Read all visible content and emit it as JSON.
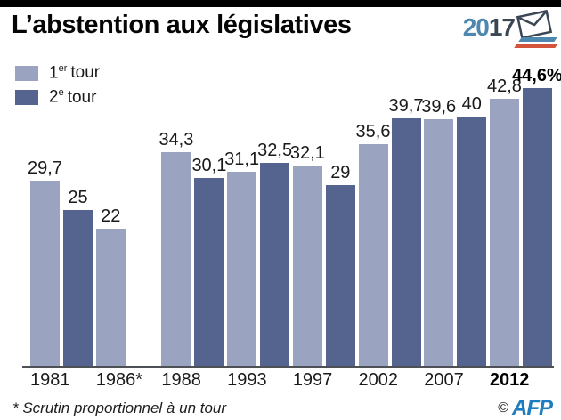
{
  "header": {
    "title": "L’abstention aux législatives",
    "logo_2017": {
      "prefix": "20",
      "suffix": "17",
      "icon": "envelope-icon",
      "stripe_colors": [
        "#4e87b0",
        "#d3543c"
      ]
    }
  },
  "legend": {
    "items": [
      {
        "num": "1",
        "sup": "er",
        "word": "tour",
        "color": "#9aa4c1"
      },
      {
        "num": "2",
        "sup": "e",
        "word": "tour",
        "color": "#54648e"
      }
    ]
  },
  "chart_data": {
    "type": "bar",
    "title": "L’abstention aux législatives",
    "unit": "%",
    "categories": [
      "1981",
      "1986*",
      "1988",
      "1993",
      "1997",
      "2002",
      "2007",
      "2012"
    ],
    "series": [
      {
        "name": "1er tour",
        "color": "#9aa4c1",
        "values": [
          29.7,
          22,
          34.3,
          31.1,
          32.1,
          35.6,
          39.6,
          42.8
        ],
        "display_labels": [
          "29,7",
          "22",
          "34,3",
          "31,1",
          "32,1",
          "35,6",
          "39,6",
          "42,8"
        ]
      },
      {
        "name": "2e tour",
        "color": "#54648e",
        "values": [
          25,
          null,
          30.1,
          32.5,
          29,
          39.7,
          40,
          44.6
        ],
        "display_labels": [
          "25",
          null,
          "30,1",
          "32,5",
          "29",
          "39,7",
          "40",
          "44,6%"
        ]
      }
    ],
    "ylim": [
      0,
      50
    ],
    "grid": false,
    "legend_position": "top-left",
    "emphasized_category_index": 7,
    "footnote_marker_category": "1986*"
  },
  "footer": {
    "note": "* Scrutin proportionnel à un tour",
    "copyright": "©",
    "agency": "AFP",
    "agency_color": "#1e7dbe"
  }
}
